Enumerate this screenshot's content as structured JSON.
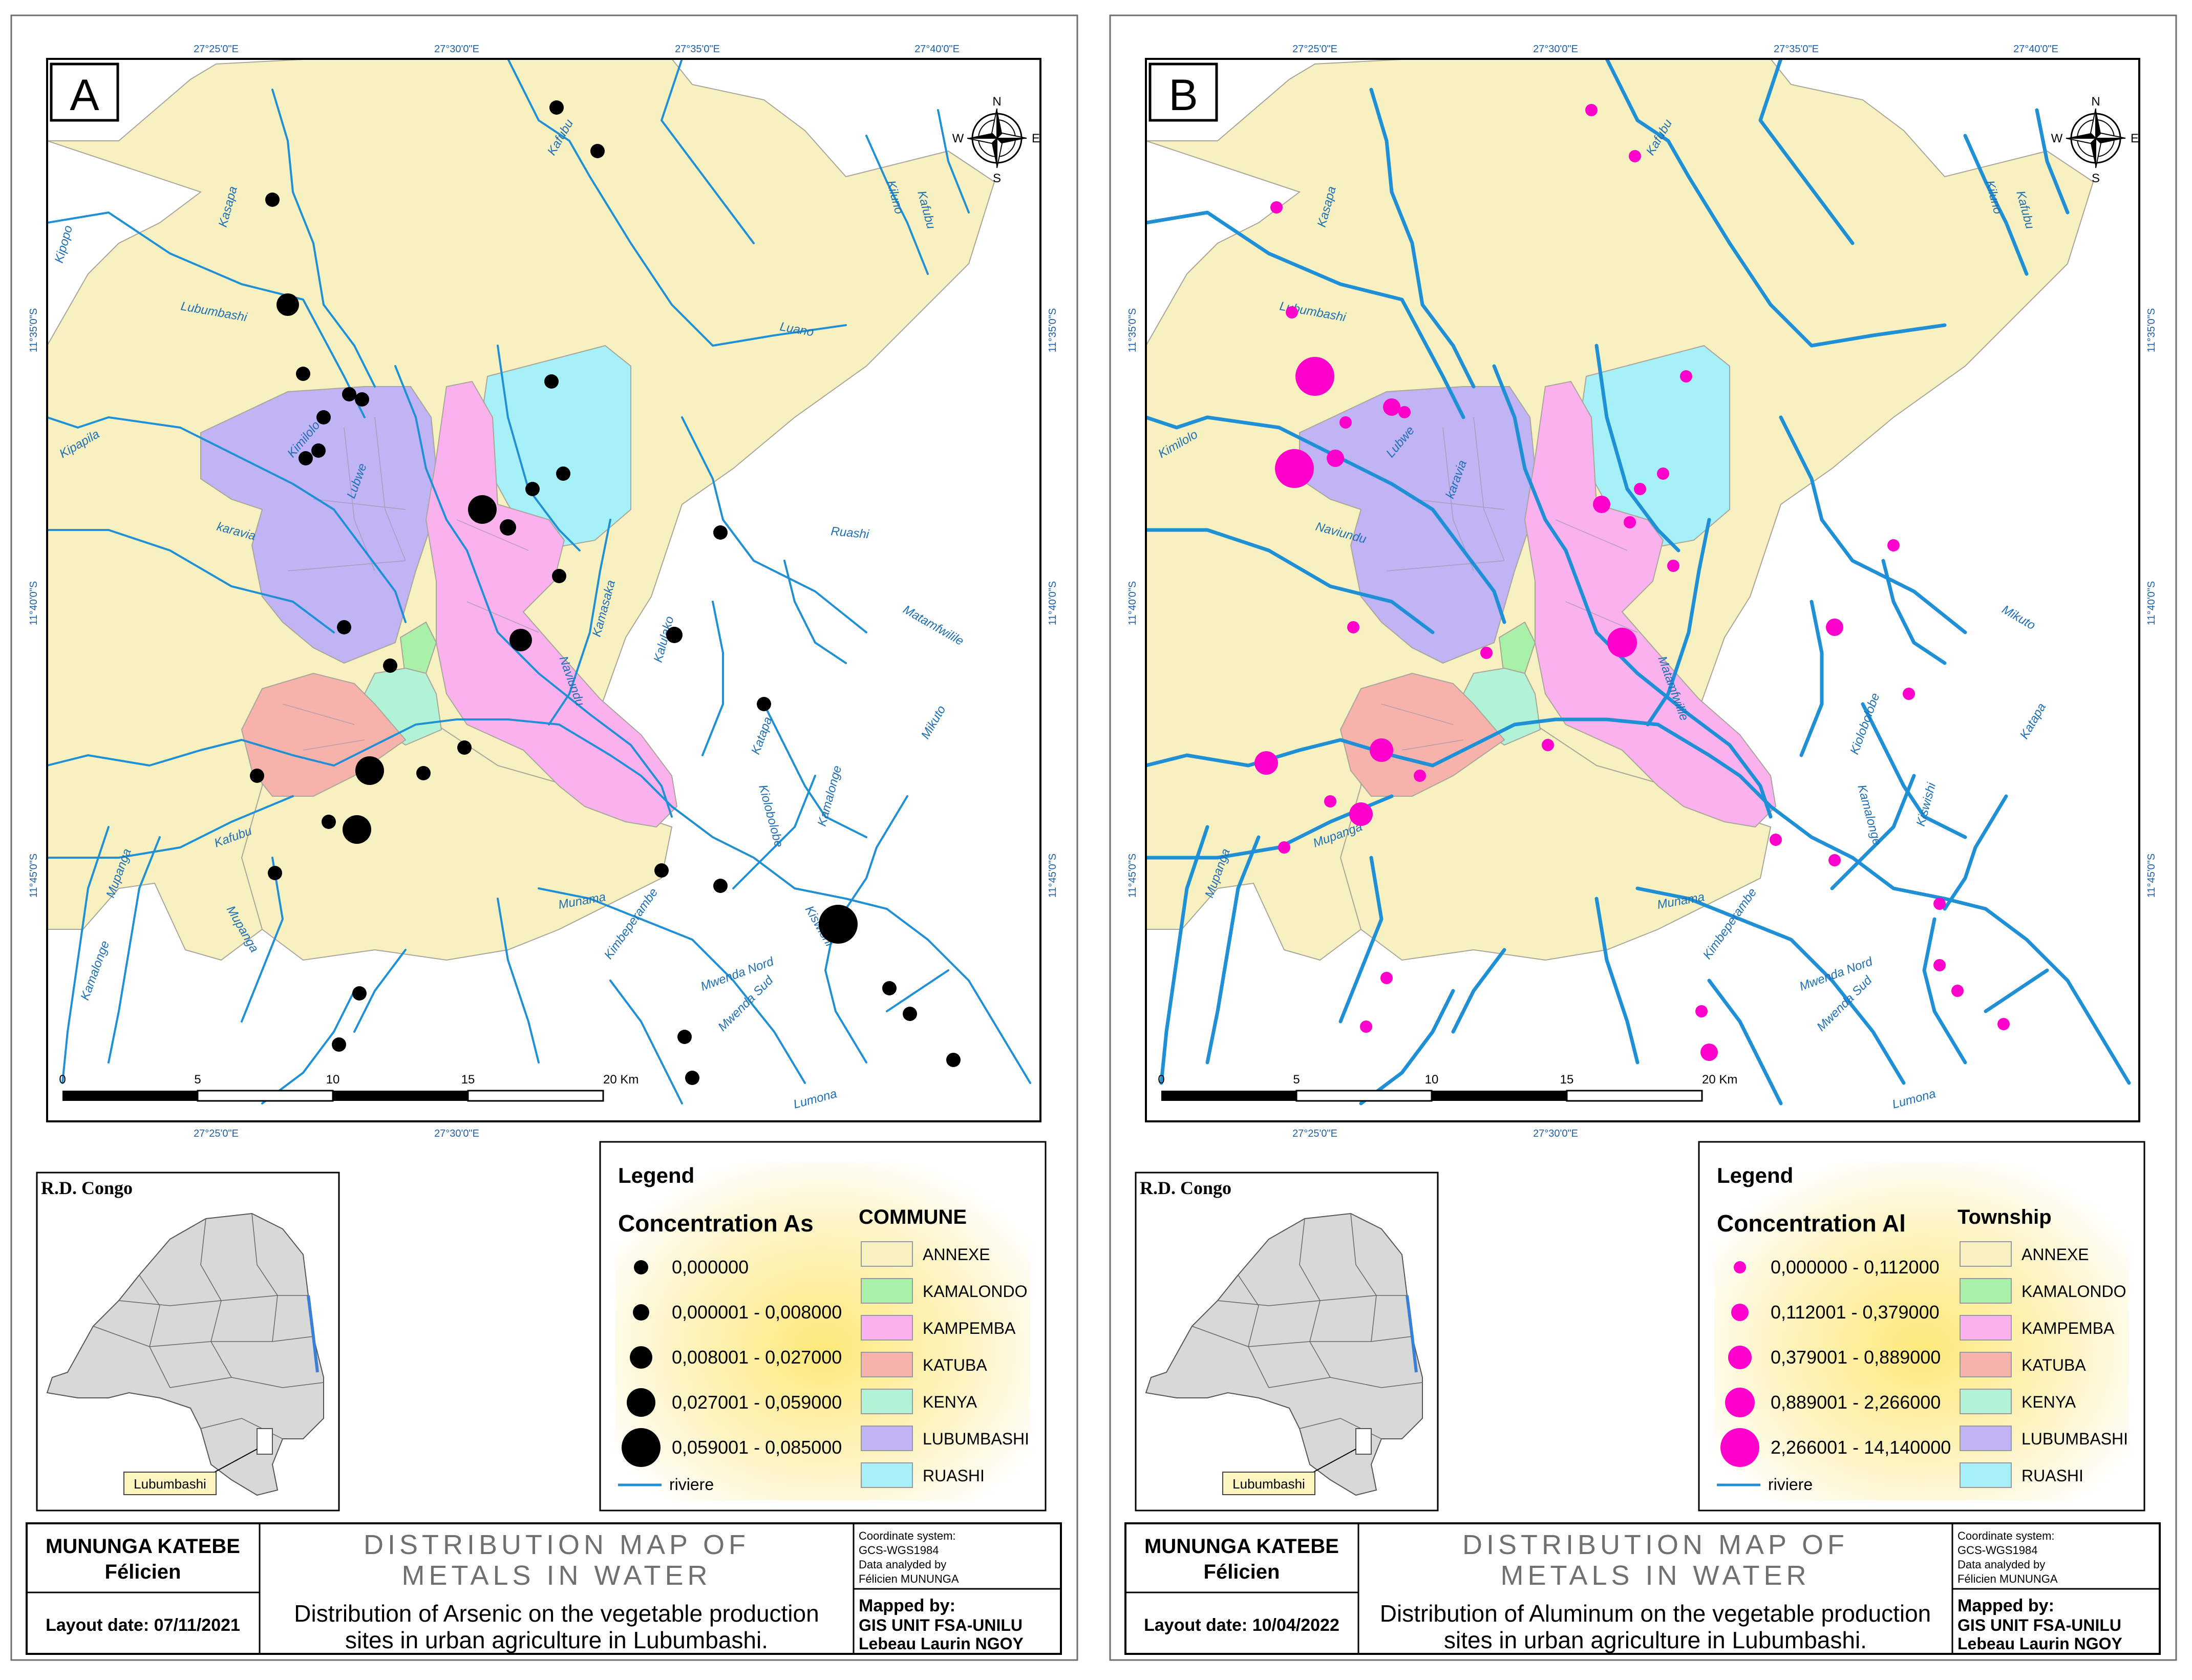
{
  "colors": {
    "annexe": "#f7f0c0",
    "kamalondo": "#a9f0a9",
    "kampemba": "#f9b2ee",
    "katuba": "#f6b3ac",
    "kenya": "#b2f2d6",
    "lubumbashi": "#c0b4f5",
    "ruashi": "#a6f0f8",
    "river": "#1f8fd6",
    "as_point": "#000000",
    "al_point": "#ff00cc",
    "legend_glow": "#fdf1a8"
  },
  "panels": [
    {
      "letter": "A",
      "lon_labels": [
        "27°25'0\"E",
        "27°30'0\"E",
        "27°35'0\"E",
        "27°40'0\"E"
      ],
      "lat_labels": [
        "11°35'0\"S",
        "11°40'0\"S",
        "11°45'0\"S"
      ],
      "compass": {
        "n": "N",
        "s": "S",
        "e": "E",
        "w": "W"
      },
      "scale": {
        "ticks": [
          "0",
          "5",
          "10",
          "15",
          "20 Km"
        ]
      },
      "river_labels": [
        "Kafubu",
        "Kasapa",
        "Kipopo",
        "Lubumbashi",
        "Luano",
        "Kiluno",
        "Kafubu",
        "Kipapila",
        "Kimilolo",
        "Lubwe",
        "karavia",
        "Ruashi",
        "Kamasaka",
        "Kalulako",
        "Naviundu",
        "Matamfwilile",
        "Mikuto",
        "Katapa",
        "Kiolobolobe",
        "Kamalonge",
        "Kiswishi",
        "Kafubu",
        "Mupanga",
        "Mupanga",
        "Kamalonge",
        "Munama",
        "Kimbeperambe",
        "Mwenda Nord",
        "Mwenda Sud",
        "Lumona"
      ],
      "legend": {
        "title": "Legend",
        "conc_title": "Concentration As",
        "classes": [
          "0,000000",
          "0,000001 - 0,008000",
          "0,008001 - 0,027000",
          "0,027001 - 0,059000",
          "0,059001 - 0,085000"
        ],
        "commune_title": "COMMUNE",
        "communes": [
          "ANNEXE",
          "KAMALONDO",
          "KAMPEMBA",
          "KATUBA",
          "KENYA",
          "LUBUMBASHI",
          "RUASHI"
        ],
        "river_label": "riviere"
      },
      "inset": {
        "title": "R.D. Congo",
        "city": "Lubumbashi"
      },
      "footer": {
        "author_line1": "MUNUNGA KATEBE",
        "author_line2": "Félicien",
        "layout_date": "Layout date: 07/11/2021",
        "map_title_1": "DISTRIBUTION MAP OF",
        "map_title_2": "METALS IN WATER",
        "subtitle_1": "Distribution of Arsenic on the vegetable production",
        "subtitle_2": "sites in urban agriculture in Lubumbashi.",
        "coord_1": "Coordinate system:",
        "coord_2": "GCS-WGS1984",
        "coord_3": "Data analyded by",
        "coord_4": "Félicien MUNUNGA",
        "mapped_1": "Mapped  by:",
        "mapped_2": "GIS UNIT FSA-UNILU",
        "mapped_3": "Lebeau Laurin NGOY"
      }
    },
    {
      "letter": "B",
      "lon_labels": [
        "27°25'0\"E",
        "27°30'0\"E",
        "27°35'0\"E",
        "27°40'0\"E"
      ],
      "lat_labels": [
        "11°35'0\"S",
        "11°40'0\"S",
        "11°45'0\"S"
      ],
      "compass": {
        "n": "N",
        "s": "S",
        "e": "E",
        "w": "W"
      },
      "scale": {
        "ticks": [
          "0",
          "5",
          "10",
          "15",
          "20 Km"
        ]
      },
      "river_labels": [
        "Kafubu",
        "Kasapa",
        "Lubumbashi",
        "Kiluno",
        "Kafubu",
        "Kimilolo",
        "Lubwe",
        "karavia",
        "Naviundu",
        "Matamfwilile",
        "Mikuto",
        "Katapa",
        "Kiolobolobe",
        "Kamalonge",
        "Kiswishi",
        "Mupanga",
        "Mupanga",
        "Munama",
        "Kimbeperambe",
        "Mwenda Nord",
        "Mwenda Sud",
        "Lumona"
      ],
      "legend": {
        "title": "Legend",
        "conc_title": "Concentration  Al",
        "classes": [
          "0,000000 - 0,112000",
          "0,112001 - 0,379000",
          "0,379001 - 0,889000",
          "0,889001 - 2,266000",
          "2,266001 - 14,140000"
        ],
        "commune_title": "Township",
        "communes": [
          "ANNEXE",
          "KAMALONDO",
          "KAMPEMBA",
          "KATUBA",
          "KENYA",
          "LUBUMBASHI",
          "RUASHI"
        ],
        "river_label": "riviere"
      },
      "inset": {
        "title": "R.D. Congo",
        "city": "Lubumbashi"
      },
      "footer": {
        "author_line1": "MUNUNGA KATEBE",
        "author_line2": "Félicien",
        "layout_date": "Layout date: 10/04/2022",
        "map_title_1": "DISTRIBUTION MAP OF",
        "map_title_2": "METALS IN WATER",
        "subtitle_1": "Distribution of Aluminum on the vegetable production",
        "subtitle_2": "sites in urban agriculture in Lubumbashi.",
        "coord_1": "Coordinate system:",
        "coord_2": "GCS-WGS1984",
        "coord_3": "Data analyded by",
        "coord_4": "Félicien MUNUNGA",
        "mapped_1": "Mapped  by:",
        "mapped_2": "GIS UNIT FSA-UNILU",
        "mapped_3": "Lebeau Laurin NGOY"
      }
    }
  ]
}
